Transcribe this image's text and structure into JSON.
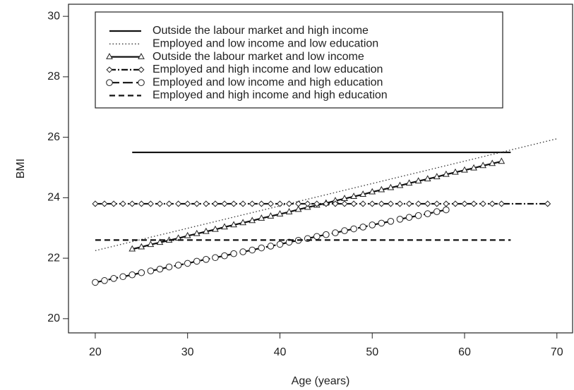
{
  "chart_data": {
    "type": "line",
    "x_label": "Age (years)",
    "y_label": "BMI",
    "xlim": [
      17.1,
      71.7
    ],
    "ylim": [
      19.53,
      30.4
    ],
    "xticks": [
      20,
      30,
      40,
      50,
      60,
      70
    ],
    "yticks": [
      20,
      22,
      24,
      26,
      28,
      30
    ],
    "legend": "top-left",
    "series": [
      {
        "name": "Outside the labour market and high income",
        "color": "#111",
        "linestyle": "solid",
        "marker": "none",
        "x": [
          24,
          65
        ],
        "values": [
          25.5,
          25.5
        ]
      },
      {
        "name": "Employed and low income and low education",
        "color": "#333",
        "linestyle": "dotted",
        "marker": "none",
        "x": [
          20,
          70
        ],
        "values": [
          22.25,
          25.95
        ]
      },
      {
        "name": "Outside the labour market and low income",
        "color": "#111",
        "linestyle": "solid",
        "marker": "triangle",
        "x": [
          24,
          25,
          26,
          27,
          28,
          29,
          30,
          31,
          32,
          33,
          34,
          35,
          36,
          37,
          38,
          39,
          40,
          41,
          42,
          43,
          44,
          45,
          46,
          47,
          48,
          49,
          50,
          51,
          52,
          53,
          54,
          55,
          56,
          57,
          58,
          59,
          60,
          61,
          62,
          63,
          64
        ],
        "values": [
          22.3,
          22.37,
          22.45,
          22.52,
          22.59,
          22.66,
          22.74,
          22.81,
          22.88,
          22.95,
          23.03,
          23.1,
          23.17,
          23.24,
          23.32,
          23.39,
          23.46,
          23.53,
          23.61,
          23.68,
          23.75,
          23.82,
          23.9,
          23.97,
          24.04,
          24.11,
          24.19,
          24.26,
          24.33,
          24.4,
          24.48,
          24.55,
          24.62,
          24.69,
          24.77,
          24.84,
          24.91,
          24.98,
          25.06,
          25.13,
          25.2
        ]
      },
      {
        "name": "Employed and high income and low education",
        "color": "#111",
        "linestyle": "dashdot",
        "marker": "diamond",
        "x": [
          20,
          21,
          22,
          23,
          24,
          25,
          26,
          27,
          28,
          29,
          30,
          31,
          32,
          33,
          34,
          35,
          36,
          37,
          38,
          39,
          40,
          41,
          42,
          43,
          44,
          45,
          46,
          47,
          48,
          49,
          50,
          51,
          52,
          53,
          54,
          55,
          56,
          57,
          58,
          59,
          60,
          61,
          62,
          63,
          64,
          69
        ],
        "values": [
          23.8,
          23.8,
          23.8,
          23.8,
          23.8,
          23.8,
          23.8,
          23.8,
          23.8,
          23.8,
          23.8,
          23.8,
          23.8,
          23.8,
          23.8,
          23.8,
          23.8,
          23.8,
          23.8,
          23.8,
          23.8,
          23.8,
          23.8,
          23.8,
          23.8,
          23.8,
          23.8,
          23.8,
          23.8,
          23.8,
          23.8,
          23.8,
          23.8,
          23.8,
          23.8,
          23.8,
          23.8,
          23.8,
          23.8,
          23.8,
          23.8,
          23.8,
          23.8,
          23.8,
          23.8,
          23.8
        ]
      },
      {
        "name": "Employed and low income and high education",
        "color": "#111",
        "linestyle": "longdash",
        "marker": "circle",
        "x": [
          20,
          21,
          22,
          23,
          24,
          25,
          26,
          27,
          28,
          29,
          30,
          31,
          32,
          33,
          34,
          35,
          36,
          37,
          38,
          39,
          40,
          41,
          42,
          43,
          44,
          45,
          46,
          47,
          48,
          49,
          50,
          51,
          52,
          53,
          54,
          55,
          56,
          57,
          58
        ],
        "values": [
          21.2,
          21.26,
          21.33,
          21.39,
          21.45,
          21.52,
          21.58,
          21.64,
          21.71,
          21.77,
          21.83,
          21.9,
          21.96,
          22.02,
          22.08,
          22.15,
          22.21,
          22.27,
          22.34,
          22.4,
          22.46,
          22.53,
          22.59,
          22.65,
          22.72,
          22.78,
          22.84,
          22.91,
          22.97,
          23.03,
          23.1,
          23.16,
          23.22,
          23.29,
          23.35,
          23.41,
          23.47,
          23.54,
          23.6
        ]
      },
      {
        "name": "Employed and high income and high education",
        "color": "#111",
        "linestyle": "dashed",
        "marker": "none",
        "x": [
          20,
          65
        ],
        "values": [
          22.6,
          22.6
        ]
      }
    ]
  }
}
